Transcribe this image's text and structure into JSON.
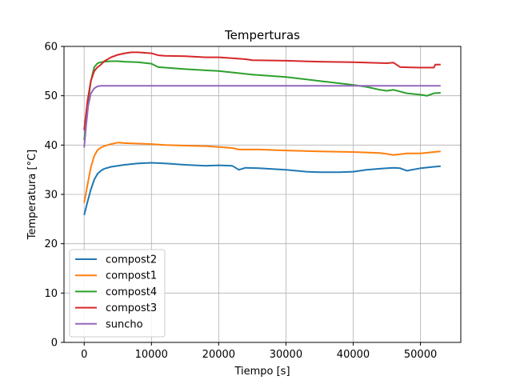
{
  "chart_data": {
    "type": "line",
    "title": "Temperturas",
    "xlabel": "Tiempo [s]",
    "ylabel": "Temperatura [°C]",
    "xlim": [
      -3000,
      56000
    ],
    "ylim": [
      0,
      60
    ],
    "xticks": [
      0,
      10000,
      20000,
      30000,
      40000,
      50000
    ],
    "yticks": [
      0,
      10,
      20,
      30,
      40,
      50,
      60
    ],
    "grid": true,
    "legend_position": "lower-left",
    "series": [
      {
        "name": "compost2",
        "color": "#1f77b4",
        "x": [
          0,
          500,
          1000,
          1500,
          2000,
          2500,
          3000,
          4000,
          5000,
          6000,
          8000,
          10000,
          12000,
          15000,
          18000,
          20000,
          22000,
          23000,
          24000,
          26000,
          30000,
          33000,
          35000,
          38000,
          40000,
          42000,
          44000,
          45000,
          46000,
          47000,
          48000,
          50000,
          52000,
          53000
        ],
        "y": [
          25.8,
          28.5,
          31,
          33,
          34.2,
          34.8,
          35.2,
          35.6,
          35.8,
          36,
          36.3,
          36.4,
          36.3,
          36,
          35.8,
          35.9,
          35.8,
          35,
          35.4,
          35.3,
          35,
          34.6,
          34.5,
          34.5,
          34.6,
          35,
          35.2,
          35.3,
          35.4,
          35.3,
          34.8,
          35.3,
          35.6,
          35.7
        ]
      },
      {
        "name": "compost1",
        "color": "#ff7f0e",
        "x": [
          0,
          500,
          1000,
          1500,
          2000,
          2500,
          3000,
          4000,
          5000,
          6000,
          8000,
          10000,
          12000,
          15000,
          18000,
          20000,
          22000,
          23000,
          26000,
          30000,
          35000,
          40000,
          44000,
          45000,
          46000,
          48000,
          50000,
          52000,
          53000
        ],
        "y": [
          28.3,
          32,
          35.5,
          37.8,
          39,
          39.5,
          39.8,
          40.2,
          40.5,
          40.4,
          40.3,
          40.2,
          40,
          39.9,
          39.8,
          39.6,
          39.4,
          39.1,
          39.1,
          38.9,
          38.7,
          38.6,
          38.4,
          38.2,
          38,
          38.3,
          38.3,
          38.6,
          38.7
        ]
      },
      {
        "name": "compost4",
        "color": "#2ca02c",
        "x": [
          0,
          500,
          1000,
          1500,
          2000,
          2500,
          3000,
          4000,
          5000,
          6000,
          8000,
          10000,
          11000,
          12000,
          15000,
          20000,
          25000,
          30000,
          35000,
          40000,
          42000,
          44000,
          45000,
          46000,
          48000,
          50000,
          51000,
          52000,
          53000
        ],
        "y": [
          41,
          48,
          53,
          55.8,
          56.6,
          56.8,
          56.9,
          57,
          57,
          56.9,
          56.8,
          56.5,
          55.8,
          55.7,
          55.4,
          55,
          54.3,
          53.8,
          53,
          52.2,
          51.8,
          51.2,
          51,
          51.2,
          50.5,
          50.2,
          50,
          50.5,
          50.6
        ]
      },
      {
        "name": "compost3",
        "color": "#d62728",
        "x": [
          0,
          500,
          1000,
          1500,
          2000,
          2500,
          3000,
          4000,
          5000,
          6000,
          7000,
          8000,
          10000,
          11000,
          12000,
          15000,
          18000,
          20000,
          22000,
          24000,
          25000,
          30000,
          35000,
          40000,
          45000,
          46000,
          47000,
          50000,
          52000,
          52200,
          53000
        ],
        "y": [
          43,
          49,
          53,
          55,
          55.8,
          56.3,
          57,
          57.8,
          58.3,
          58.6,
          58.8,
          58.8,
          58.6,
          58.2,
          58.1,
          58,
          57.8,
          57.8,
          57.6,
          57.4,
          57.2,
          57.1,
          56.9,
          56.8,
          56.6,
          56.7,
          55.8,
          55.7,
          55.7,
          56.3,
          56.3
        ]
      },
      {
        "name": "suncho",
        "color": "#9467bd",
        "x": [
          0,
          300,
          600,
          1000,
          1500,
          2000,
          2500,
          3000,
          5000,
          10000,
          15000,
          20000,
          25000,
          30000,
          35000,
          40000,
          45000,
          50000,
          53000
        ],
        "y": [
          39.5,
          44,
          48,
          50.5,
          51.5,
          51.9,
          52,
          52,
          52,
          52,
          52,
          52,
          52,
          52,
          52,
          52,
          52,
          52,
          52
        ]
      }
    ]
  }
}
